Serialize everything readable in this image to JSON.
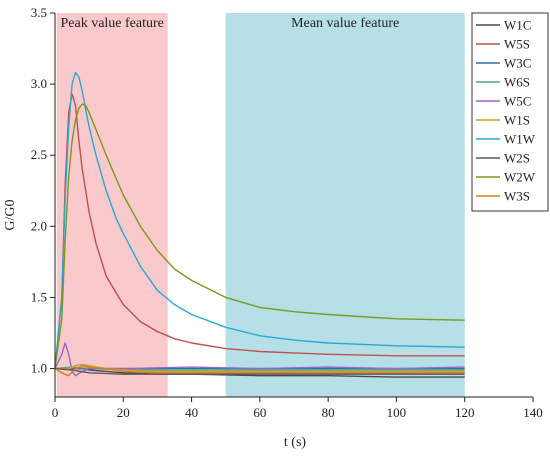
{
  "chart_data": {
    "type": "line",
    "title": "",
    "xlabel": "t (s)",
    "ylabel": "G/G0",
    "xlim": [
      0,
      140
    ],
    "ylim": [
      0.8,
      3.5
    ],
    "xticks": [
      0,
      20,
      40,
      60,
      80,
      100,
      120,
      140
    ],
    "yticks": [
      1.0,
      1.5,
      2.0,
      2.5,
      3.0,
      3.5
    ],
    "xtick_labels": [
      "0",
      "20",
      "40",
      "60",
      "80",
      "100",
      "120",
      "140"
    ],
    "ytick_labels": [
      "1.0",
      "1.5",
      "2.0",
      "2.5",
      "3.0",
      "3.5"
    ],
    "grid": false,
    "legend_position": "top-right",
    "regions": [
      {
        "label": "Peak value feature",
        "x_start": 0.5,
        "x_end": 33,
        "color": "#f9c9cc"
      },
      {
        "label": "Mean value feature",
        "x_start": 50,
        "x_end": 120,
        "color": "#b7dfe8"
      }
    ],
    "series": [
      {
        "name": "W1C",
        "color": "#4a4a4a",
        "x": [
          0,
          2,
          4,
          6,
          8,
          10,
          15,
          20,
          30,
          40,
          60,
          80,
          100,
          120
        ],
        "y": [
          1.0,
          1.0,
          1.0,
          1.0,
          1.0,
          0.99,
          0.98,
          0.97,
          0.96,
          0.96,
          0.95,
          0.95,
          0.94,
          0.94
        ]
      },
      {
        "name": "W5S",
        "color": "#c0504d",
        "x": [
          0,
          2,
          3,
          4,
          5,
          6,
          7,
          8,
          10,
          12,
          15,
          20,
          25,
          30,
          35,
          40,
          50,
          60,
          70,
          80,
          100,
          120
        ],
        "y": [
          1.0,
          1.5,
          2.3,
          2.8,
          2.93,
          2.85,
          2.6,
          2.4,
          2.1,
          1.88,
          1.65,
          1.45,
          1.33,
          1.26,
          1.21,
          1.18,
          1.14,
          1.12,
          1.11,
          1.1,
          1.09,
          1.09
        ]
      },
      {
        "name": "W3C",
        "color": "#2f6fa8",
        "x": [
          0,
          5,
          10,
          20,
          40,
          60,
          80,
          100,
          120
        ],
        "y": [
          1.0,
          1.0,
          1.0,
          1.0,
          1.0,
          1.0,
          1.0,
          1.0,
          1.0
        ]
      },
      {
        "name": "W6S",
        "color": "#4aa58c",
        "x": [
          0,
          5,
          10,
          20,
          40,
          60,
          80,
          100,
          120
        ],
        "y": [
          1.0,
          1.01,
          1.0,
          0.99,
          0.99,
          0.99,
          0.99,
          0.99,
          0.99
        ]
      },
      {
        "name": "W5C",
        "color": "#9966cc",
        "x": [
          0,
          2,
          3,
          4,
          5,
          6,
          8,
          10,
          15,
          20,
          40,
          60,
          80,
          100,
          120
        ],
        "y": [
          1.0,
          1.1,
          1.18,
          1.1,
          0.98,
          0.95,
          0.98,
          1.0,
          1.0,
          1.0,
          1.01,
          1.0,
          1.01,
          1.0,
          1.01
        ]
      },
      {
        "name": "W1S",
        "color": "#c9a227",
        "x": [
          0,
          2,
          4,
          6,
          8,
          10,
          15,
          20,
          30,
          40,
          60,
          80,
          100,
          120
        ],
        "y": [
          1.0,
          1.0,
          1.0,
          1.02,
          1.03,
          1.02,
          1.0,
          0.99,
          0.98,
          0.98,
          0.98,
          0.98,
          0.98,
          0.98
        ]
      },
      {
        "name": "W1W",
        "color": "#29a8d8",
        "x": [
          0,
          2,
          3,
          4,
          5,
          6,
          7,
          8,
          9,
          10,
          12,
          15,
          18,
          20,
          25,
          30,
          35,
          40,
          50,
          60,
          70,
          80,
          100,
          120
        ],
        "y": [
          1.0,
          1.5,
          2.2,
          2.7,
          3.0,
          3.08,
          3.05,
          2.95,
          2.82,
          2.7,
          2.5,
          2.25,
          2.05,
          1.95,
          1.72,
          1.55,
          1.45,
          1.38,
          1.29,
          1.23,
          1.2,
          1.18,
          1.16,
          1.15
        ]
      },
      {
        "name": "W2S",
        "color": "#5a5a5a",
        "x": [
          0,
          5,
          10,
          20,
          40,
          60,
          80,
          100,
          120
        ],
        "y": [
          1.0,
          0.99,
          0.97,
          0.96,
          0.96,
          0.96,
          0.96,
          0.96,
          0.96
        ]
      },
      {
        "name": "W2W",
        "color": "#7a9a1a",
        "x": [
          0,
          2,
          3,
          4,
          5,
          6,
          7,
          8,
          9,
          10,
          12,
          15,
          18,
          20,
          25,
          30,
          35,
          40,
          50,
          60,
          70,
          80,
          100,
          120
        ],
        "y": [
          1.0,
          1.35,
          1.9,
          2.35,
          2.6,
          2.75,
          2.83,
          2.86,
          2.85,
          2.8,
          2.68,
          2.5,
          2.33,
          2.22,
          2.0,
          1.83,
          1.7,
          1.62,
          1.5,
          1.43,
          1.4,
          1.38,
          1.35,
          1.34
        ]
      },
      {
        "name": "W3S",
        "color": "#e07b1e",
        "x": [
          0,
          2,
          4,
          6,
          8,
          10,
          15,
          20,
          30,
          40,
          60,
          80,
          100,
          120
        ],
        "y": [
          1.0,
          0.97,
          0.95,
          1.0,
          1.02,
          1.01,
          1.0,
          0.98,
          0.97,
          0.97,
          0.97,
          0.97,
          0.97,
          0.97
        ]
      }
    ]
  }
}
